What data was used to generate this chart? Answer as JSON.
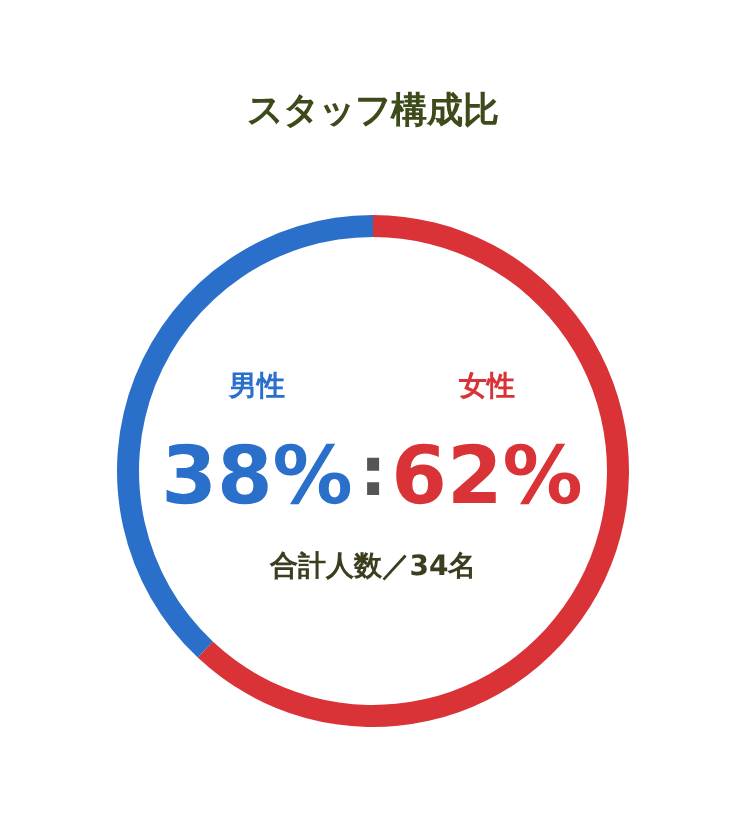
{
  "chart_data": {
    "type": "donut",
    "title": "スタッフ構成比",
    "categories": [
      "女性",
      "男性"
    ],
    "values": [
      62,
      38
    ],
    "colors": [
      "#d93338",
      "#2a6fc9"
    ],
    "value_labels": [
      "62%",
      "38%"
    ],
    "annotations": [
      ":",
      "合計人数／34名"
    ]
  }
}
